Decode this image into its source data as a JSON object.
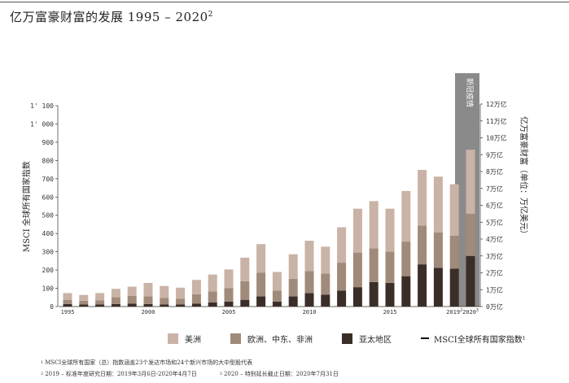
{
  "page": {
    "title": "亿万富豪财富的发展 1995 – 2020",
    "title_sup": "2"
  },
  "chart_data": {
    "type": "bar",
    "stacked": true,
    "years": [
      1995,
      1996,
      1997,
      1998,
      1999,
      2000,
      2001,
      2002,
      2003,
      2004,
      2005,
      2006,
      2007,
      2008,
      2009,
      2010,
      2011,
      2012,
      2013,
      2014,
      2015,
      2016,
      2017,
      2018,
      2019,
      2020
    ],
    "x_tick_labels": [
      "1995",
      "2000",
      "2005",
      "2010",
      "2015",
      "2019",
      "2020"
    ],
    "x_tick_years": [
      1995,
      2000,
      2005,
      2010,
      2015,
      2019,
      2020
    ],
    "x_tick_sups": [
      "",
      "",
      "",
      "",
      "",
      "2",
      "3"
    ],
    "series": [
      {
        "name": "亚太地区",
        "color": "#3b2e28",
        "values": [
          0.15,
          0.12,
          0.12,
          0.15,
          0.18,
          0.15,
          0.12,
          0.12,
          0.18,
          0.25,
          0.3,
          0.4,
          0.6,
          0.3,
          0.6,
          0.8,
          0.7,
          0.95,
          1.15,
          1.45,
          1.4,
          1.8,
          2.5,
          2.3,
          2.25,
          3.0
        ]
      },
      {
        "name": "欧洲、中东、非洲",
        "color": "#a08a7a",
        "values": [
          0.25,
          0.22,
          0.24,
          0.4,
          0.45,
          0.45,
          0.4,
          0.35,
          0.55,
          0.65,
          0.8,
          1.1,
          1.4,
          0.65,
          1.05,
          1.3,
          1.25,
          1.65,
          2.05,
          2.0,
          1.85,
          2.05,
          2.3,
          2.1,
          1.95,
          2.5
        ]
      },
      {
        "name": "美洲",
        "color": "#c9b3a6",
        "values": [
          0.4,
          0.35,
          0.44,
          0.5,
          0.55,
          0.8,
          0.7,
          0.65,
          0.85,
          1.0,
          1.1,
          1.4,
          1.7,
          1.1,
          1.45,
          1.8,
          1.6,
          2.1,
          2.6,
          2.8,
          2.55,
          3.0,
          3.3,
          3.3,
          3.05,
          3.8
        ]
      }
    ],
    "right_axis": {
      "label": "亿万富豪财富（单位：万亿美元）",
      "min": 0,
      "max": 12,
      "tick_labels": [
        "0万亿",
        "1万亿",
        "2万亿",
        "3万亿",
        "4万亿",
        "5万亿",
        "6万亿",
        "7万亿",
        "8万亿",
        "9万亿",
        "10万亿",
        "11万亿",
        "12万亿"
      ]
    },
    "left_axis": {
      "label": "MSCI 全球所有国家指数",
      "tick_labels": [
        "0",
        "100",
        "200",
        "300",
        "400",
        "500",
        "600",
        "700",
        "800",
        "900",
        "1' 000",
        "1' 100"
      ],
      "tick_values": [
        0,
        100,
        200,
        300,
        400,
        500,
        600,
        700,
        800,
        900,
        1000,
        1100
      ]
    },
    "annotation": "新冠疫情"
  },
  "legend": [
    {
      "label": "美洲",
      "color": "#c9b3a6"
    },
    {
      "label": "欧洲、中东、非洲",
      "color": "#a08a7a"
    },
    {
      "label": "亚太地区",
      "color": "#3b2e28"
    },
    {
      "label": "MSCI全球所有国家指数",
      "sup": "1"
    }
  ],
  "footnotes": {
    "fn1_sup": "1",
    "fn1": "MSCI全球所有国家（总）指数涵盖23个发达市场和24个新兴市场的大中型股代表",
    "fn2_sup": "2",
    "fn2": "2019 – 标准年度研究日期：2019年3月6日-2020年4月7日",
    "fn3_sup": "3",
    "fn3": "2020 – 特别延长截止日期：2020年7月31日"
  }
}
